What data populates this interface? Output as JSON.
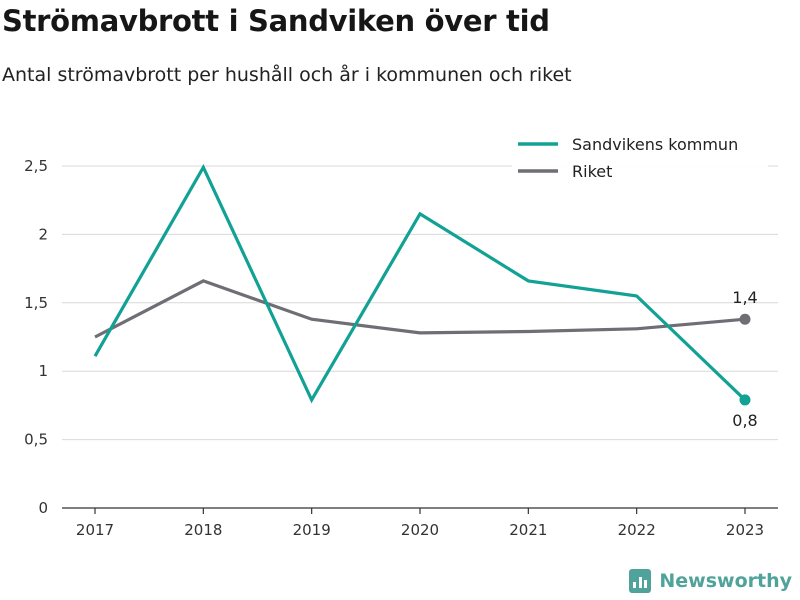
{
  "header": {
    "title": "Strömavbrott i Sandviken över tid",
    "subtitle": "Antal strömavbrott per hushåll och år i kommunen och riket"
  },
  "brand": {
    "name": "Newsworthy",
    "icon": "bar-chart-logo-icon",
    "color": "#4fa39a"
  },
  "chart_data": {
    "type": "line",
    "title": "Strömavbrott i Sandviken över tid",
    "subtitle": "Antal strömavbrott per hushåll och år i kommunen och riket",
    "x": [
      2017,
      2018,
      2019,
      2020,
      2021,
      2022,
      2023
    ],
    "x_tick_labels": [
      "2017",
      "2018",
      "2019",
      "2020",
      "2021",
      "2022",
      "2023"
    ],
    "ylim": [
      0,
      2.5
    ],
    "y_ticks": [
      0,
      0.5,
      1,
      1.5,
      2,
      2.5
    ],
    "y_tick_labels": [
      "0",
      "0,5",
      "1",
      "1,5",
      "2",
      "2,5"
    ],
    "grid": true,
    "legend_position": "top-right",
    "series": [
      {
        "name": "Sandvikens kommun",
        "color": "#11a195",
        "values": [
          1.11,
          2.49,
          0.79,
          2.15,
          1.66,
          1.55,
          0.79
        ],
        "end_label": "0,8",
        "end_label_position": "below"
      },
      {
        "name": "Riket",
        "color": "#6f6e74",
        "values": [
          1.25,
          1.66,
          1.38,
          1.28,
          1.29,
          1.31,
          1.38
        ],
        "end_label": "1,4",
        "end_label_position": "above"
      }
    ]
  }
}
